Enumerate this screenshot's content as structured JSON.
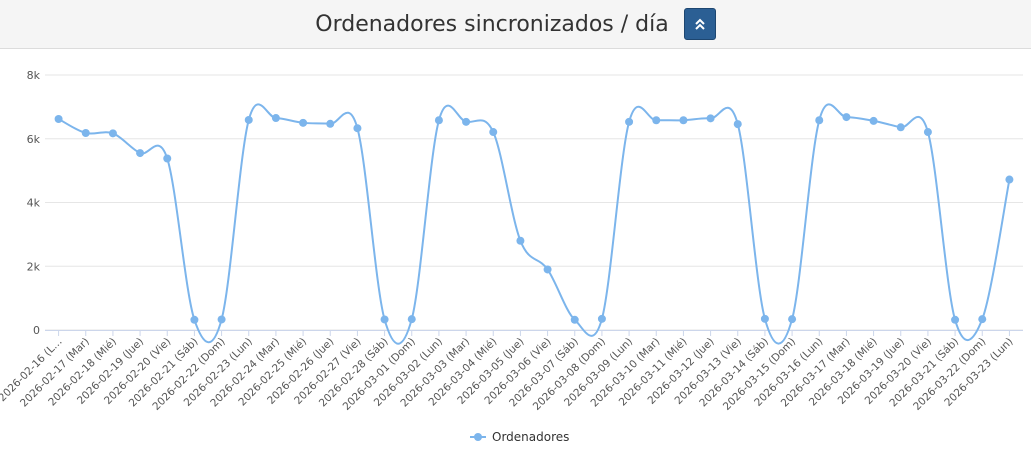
{
  "header": {
    "title": "Ordenadores sincronizados / día"
  },
  "colors": {
    "series": "#7cb5ec",
    "grid": "#e6e6e6",
    "header_bg": "#f5f5f5",
    "button": "#2b5f94"
  },
  "icons": {
    "collapse": "chevrons-up-icon"
  },
  "chart_data": {
    "type": "line",
    "title": "Ordenadores sincronizados / día",
    "ylim": [
      0,
      8000
    ],
    "yticks": [
      "0",
      "2k",
      "4k",
      "6k",
      "8k"
    ],
    "ytick_values": [
      0,
      2000,
      4000,
      6000,
      8000
    ],
    "grid": true,
    "legend_position": "bottom-center",
    "categories": [
      "2026-02-16 (L…",
      "2026-02-17 (Mar)",
      "2026-02-18 (Mié)",
      "2026-02-19 (Jue)",
      "2026-02-20 (Vie)",
      "2026-02-21 (Sáb)",
      "2026-02-22 (Dom)",
      "2026-02-23 (Lun)",
      "2026-02-24 (Mar)",
      "2026-02-25 (Mié)",
      "2026-02-26 (Jue)",
      "2026-02-27 (Vie)",
      "2026-02-28 (Sáb)",
      "2026-03-01 (Dom)",
      "2026-03-02 (Lun)",
      "2026-03-03 (Mar)",
      "2026-03-04 (Mié)",
      "2026-03-05 (Jue)",
      "2026-03-06 (Vie)",
      "2026-03-07 (Sáb)",
      "2026-03-08 (Dom)",
      "2026-03-09 (Lun)",
      "2026-03-10 (Mar)",
      "2026-03-11 (Mié)",
      "2026-03-12 (Jue)",
      "2026-03-13 (Vie)",
      "2026-03-14 (Sáb)",
      "2026-03-15 (Dom)",
      "2026-03-16 (Lun)",
      "2026-03-17 (Mar)",
      "2026-03-18 (Mié)",
      "2026-03-19 (Jue)",
      "2026-03-20 (Vie)",
      "2026-03-21 (Sáb)",
      "2026-03-22 (Dom)",
      "2026-03-23 (Lun)"
    ],
    "series": [
      {
        "name": "Ordenadores",
        "values": [
          6620,
          6180,
          6170,
          5550,
          5380,
          320,
          330,
          6590,
          6650,
          6500,
          6470,
          6330,
          330,
          340,
          6580,
          6530,
          6210,
          2800,
          1900,
          320,
          350,
          6530,
          6580,
          6580,
          6640,
          6460,
          350,
          340,
          6580,
          6680,
          6560,
          6360,
          6210,
          320,
          340,
          4720
        ]
      }
    ]
  }
}
